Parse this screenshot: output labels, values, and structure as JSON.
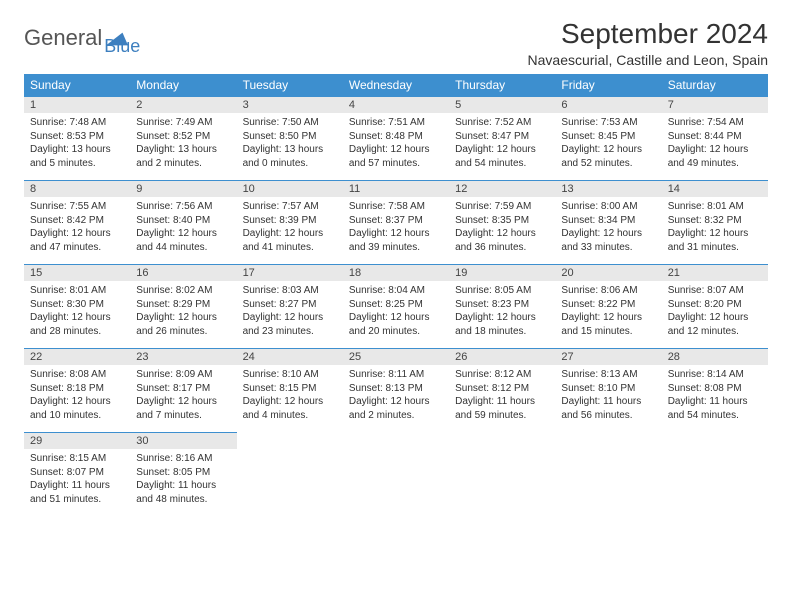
{
  "brand": {
    "main": "General",
    "sub": "Blue"
  },
  "title": "September 2024",
  "location": "Navaescurial, Castille and Leon, Spain",
  "colors": {
    "header_bar": "#3d8fcf",
    "accent": "#3d7fbf",
    "daynum_bg": "#e8e8e8"
  },
  "dow": [
    "Sunday",
    "Monday",
    "Tuesday",
    "Wednesday",
    "Thursday",
    "Friday",
    "Saturday"
  ],
  "weeks": [
    [
      {
        "n": "1",
        "sr": "7:48 AM",
        "ss": "8:53 PM",
        "dl": "13 hours and 5 minutes."
      },
      {
        "n": "2",
        "sr": "7:49 AM",
        "ss": "8:52 PM",
        "dl": "13 hours and 2 minutes."
      },
      {
        "n": "3",
        "sr": "7:50 AM",
        "ss": "8:50 PM",
        "dl": "13 hours and 0 minutes."
      },
      {
        "n": "4",
        "sr": "7:51 AM",
        "ss": "8:48 PM",
        "dl": "12 hours and 57 minutes."
      },
      {
        "n": "5",
        "sr": "7:52 AM",
        "ss": "8:47 PM",
        "dl": "12 hours and 54 minutes."
      },
      {
        "n": "6",
        "sr": "7:53 AM",
        "ss": "8:45 PM",
        "dl": "12 hours and 52 minutes."
      },
      {
        "n": "7",
        "sr": "7:54 AM",
        "ss": "8:44 PM",
        "dl": "12 hours and 49 minutes."
      }
    ],
    [
      {
        "n": "8",
        "sr": "7:55 AM",
        "ss": "8:42 PM",
        "dl": "12 hours and 47 minutes."
      },
      {
        "n": "9",
        "sr": "7:56 AM",
        "ss": "8:40 PM",
        "dl": "12 hours and 44 minutes."
      },
      {
        "n": "10",
        "sr": "7:57 AM",
        "ss": "8:39 PM",
        "dl": "12 hours and 41 minutes."
      },
      {
        "n": "11",
        "sr": "7:58 AM",
        "ss": "8:37 PM",
        "dl": "12 hours and 39 minutes."
      },
      {
        "n": "12",
        "sr": "7:59 AM",
        "ss": "8:35 PM",
        "dl": "12 hours and 36 minutes."
      },
      {
        "n": "13",
        "sr": "8:00 AM",
        "ss": "8:34 PM",
        "dl": "12 hours and 33 minutes."
      },
      {
        "n": "14",
        "sr": "8:01 AM",
        "ss": "8:32 PM",
        "dl": "12 hours and 31 minutes."
      }
    ],
    [
      {
        "n": "15",
        "sr": "8:01 AM",
        "ss": "8:30 PM",
        "dl": "12 hours and 28 minutes."
      },
      {
        "n": "16",
        "sr": "8:02 AM",
        "ss": "8:29 PM",
        "dl": "12 hours and 26 minutes."
      },
      {
        "n": "17",
        "sr": "8:03 AM",
        "ss": "8:27 PM",
        "dl": "12 hours and 23 minutes."
      },
      {
        "n": "18",
        "sr": "8:04 AM",
        "ss": "8:25 PM",
        "dl": "12 hours and 20 minutes."
      },
      {
        "n": "19",
        "sr": "8:05 AM",
        "ss": "8:23 PM",
        "dl": "12 hours and 18 minutes."
      },
      {
        "n": "20",
        "sr": "8:06 AM",
        "ss": "8:22 PM",
        "dl": "12 hours and 15 minutes."
      },
      {
        "n": "21",
        "sr": "8:07 AM",
        "ss": "8:20 PM",
        "dl": "12 hours and 12 minutes."
      }
    ],
    [
      {
        "n": "22",
        "sr": "8:08 AM",
        "ss": "8:18 PM",
        "dl": "12 hours and 10 minutes."
      },
      {
        "n": "23",
        "sr": "8:09 AM",
        "ss": "8:17 PM",
        "dl": "12 hours and 7 minutes."
      },
      {
        "n": "24",
        "sr": "8:10 AM",
        "ss": "8:15 PM",
        "dl": "12 hours and 4 minutes."
      },
      {
        "n": "25",
        "sr": "8:11 AM",
        "ss": "8:13 PM",
        "dl": "12 hours and 2 minutes."
      },
      {
        "n": "26",
        "sr": "8:12 AM",
        "ss": "8:12 PM",
        "dl": "11 hours and 59 minutes."
      },
      {
        "n": "27",
        "sr": "8:13 AM",
        "ss": "8:10 PM",
        "dl": "11 hours and 56 minutes."
      },
      {
        "n": "28",
        "sr": "8:14 AM",
        "ss": "8:08 PM",
        "dl": "11 hours and 54 minutes."
      }
    ],
    [
      {
        "n": "29",
        "sr": "8:15 AM",
        "ss": "8:07 PM",
        "dl": "11 hours and 51 minutes."
      },
      {
        "n": "30",
        "sr": "8:16 AM",
        "ss": "8:05 PM",
        "dl": "11 hours and 48 minutes."
      },
      null,
      null,
      null,
      null,
      null
    ]
  ],
  "labels": {
    "sunrise": "Sunrise: ",
    "sunset": "Sunset: ",
    "daylight": "Daylight: "
  }
}
